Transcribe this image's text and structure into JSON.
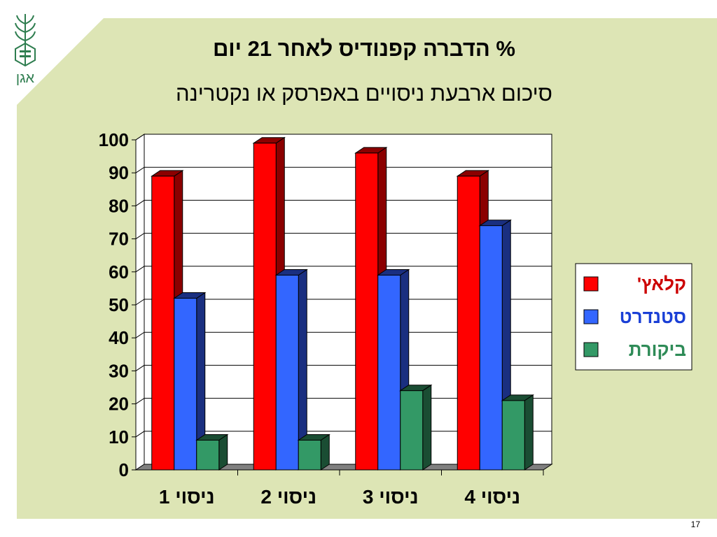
{
  "slide": {
    "title": "% הדברה קפנודיס לאחר 21 יום",
    "subtitle": "סיכום ארבעת  ניסויים  באפרסק או נקטרינה",
    "number": "17",
    "logo_text": "אגן",
    "background_color": "#dde5b5"
  },
  "chart_data": {
    "type": "bar",
    "categories": [
      "ניסוי 1",
      "ניסוי 2",
      "ניסוי 3",
      "ניסוי 4"
    ],
    "series": [
      {
        "name": "קלאץ'",
        "values": [
          89,
          99,
          96,
          89
        ],
        "color": "#ff0000",
        "side": "#8b0000",
        "label_color": "#cc0000"
      },
      {
        "name": "סטנדרט",
        "values": [
          52,
          59,
          59,
          74
        ],
        "color": "#3366ff",
        "side": "#1a2f80",
        "label_color": "#1a3fd6"
      },
      {
        "name": "ביקורת",
        "values": [
          9,
          9,
          24,
          21
        ],
        "color": "#339966",
        "side": "#1a4d33",
        "label_color": "#2e8b57"
      }
    ],
    "ylim": [
      0,
      100
    ],
    "yticks": [
      "0",
      "10",
      "20",
      "30",
      "40",
      "50",
      "60",
      "70",
      "80",
      "90",
      "100"
    ],
    "grid": true,
    "legend_position": "right",
    "style": "3d"
  }
}
